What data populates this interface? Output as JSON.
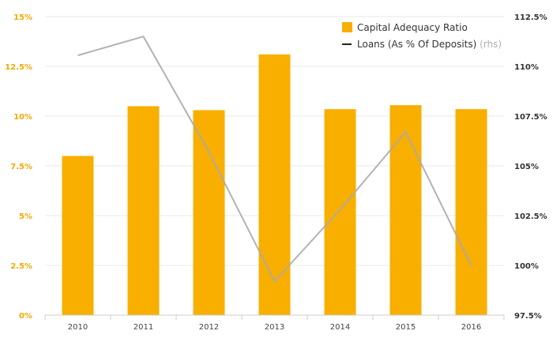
{
  "chart_data": {
    "type": "bar",
    "categories": [
      "2010",
      "2011",
      "2012",
      "2013",
      "2014",
      "2015",
      "2016"
    ],
    "series": [
      {
        "name": "Capital Adequacy Ratio",
        "type": "bar",
        "axis": "left",
        "color": "#F8AF00",
        "values": [
          8.0,
          10.5,
          10.3,
          13.1,
          10.35,
          10.55,
          10.35
        ]
      },
      {
        "name": "Loans (As % Of Deposits)",
        "name_suffix": "(rhs)",
        "type": "line",
        "axis": "right",
        "color": "#AAAAAA",
        "values": [
          110.55,
          111.5,
          105.7,
          99.2,
          102.8,
          106.7,
          100.0
        ]
      }
    ],
    "y_left": {
      "ticks": [
        "0%",
        "2.5%",
        "5%",
        "7.5%",
        "10%",
        "12.5%",
        "15%"
      ],
      "ylim": [
        0,
        15
      ],
      "tick_color": "#F5A800"
    },
    "y_right": {
      "ticks": [
        "97.5%",
        "100%",
        "102.5%",
        "105%",
        "107.5%",
        "110%",
        "112.5%"
      ],
      "ylim": [
        97.5,
        112.5
      ],
      "tick_color": "#333333"
    },
    "legend_position": "top-right",
    "grid": true
  }
}
